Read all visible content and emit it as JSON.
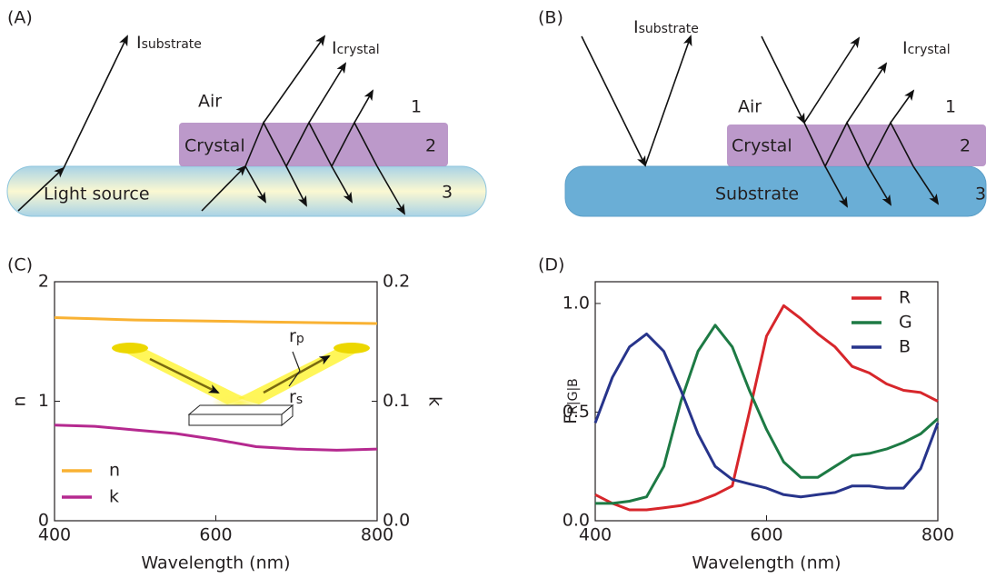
{
  "panel_a": {
    "label": "(A)",
    "i_substrate": {
      "main": "I",
      "sub": "substrate"
    },
    "i_crystal": {
      "main": "I",
      "sub": "crystal"
    },
    "air": "Air",
    "layer_1": "1",
    "crystal": "Crystal",
    "layer_2": "2",
    "base": "Light source",
    "layer_3": "3"
  },
  "panel_b": {
    "label": "(B)",
    "i_substrate": {
      "main": "I",
      "sub": "substrate"
    },
    "i_crystal": {
      "main": "I",
      "sub": "crystal"
    },
    "air": "Air",
    "layer_1": "1",
    "crystal": "Crystal",
    "layer_2": "2",
    "base": "Substrate",
    "layer_3": "3"
  },
  "chart_data": [
    {
      "type": "line",
      "title": "(C)",
      "x_label": "Wavelength (nm)",
      "y_label": "n",
      "y2_label": "k",
      "x": [
        400,
        450,
        500,
        550,
        600,
        650,
        700,
        750,
        800
      ],
      "series": [
        {
          "name": "n",
          "color": "#f9b233",
          "values": [
            1.7,
            1.69,
            1.68,
            1.675,
            1.67,
            1.665,
            1.66,
            1.655,
            1.65
          ]
        },
        {
          "name": "k",
          "color": "#b5298f",
          "axis": "y2",
          "values": [
            0.08,
            0.079,
            0.076,
            0.073,
            0.068,
            0.062,
            0.06,
            0.059,
            0.06
          ]
        }
      ],
      "xlim": [
        400,
        800
      ],
      "xticks": [
        400,
        600,
        800
      ],
      "ylim": [
        0,
        2
      ],
      "yticks": [
        0,
        1,
        2
      ],
      "y2lim": [
        0,
        0.2
      ],
      "y2ticks": [
        {
          "value": 0,
          "label": "0.0"
        },
        {
          "value": 0.1,
          "label": "0.1"
        },
        {
          "value": 0.2,
          "label": "0.2"
        }
      ],
      "legend": "lower left",
      "inset_labels": [
        {
          "main": "r",
          "sub": "p"
        },
        {
          "main": "r",
          "sub": "s"
        }
      ]
    },
    {
      "type": "line",
      "title": "(D)",
      "x_label": "Wavelength (nm)",
      "y_label": {
        "main": "F",
        "sub": "R|G|B"
      },
      "x": [
        400,
        420,
        440,
        460,
        480,
        500,
        520,
        540,
        560,
        580,
        600,
        620,
        640,
        660,
        680,
        700,
        720,
        740,
        760,
        780,
        800
      ],
      "series": [
        {
          "name": "R",
          "color": "#d7262b",
          "values": [
            0.12,
            0.08,
            0.05,
            0.05,
            0.06,
            0.07,
            0.09,
            0.12,
            0.16,
            0.5,
            0.85,
            0.99,
            0.93,
            0.86,
            0.8,
            0.71,
            0.68,
            0.63,
            0.6,
            0.59,
            0.55
          ]
        },
        {
          "name": "G",
          "color": "#1d7a44",
          "values": [
            0.08,
            0.08,
            0.09,
            0.11,
            0.25,
            0.55,
            0.78,
            0.9,
            0.8,
            0.6,
            0.42,
            0.27,
            0.2,
            0.2,
            0.25,
            0.3,
            0.31,
            0.33,
            0.36,
            0.4,
            0.47
          ]
        },
        {
          "name": "B",
          "color": "#27348b",
          "values": [
            0.45,
            0.66,
            0.8,
            0.86,
            0.78,
            0.6,
            0.4,
            0.25,
            0.19,
            0.17,
            0.15,
            0.12,
            0.11,
            0.12,
            0.13,
            0.16,
            0.16,
            0.15,
            0.15,
            0.24,
            0.45
          ]
        }
      ],
      "xlim": [
        400,
        800
      ],
      "xticks": [
        400,
        600,
        800
      ],
      "ylim": [
        0,
        1.1
      ],
      "yticks": [
        {
          "value": 0,
          "label": "0.0"
        },
        {
          "value": 0.5,
          "label": "0.5"
        },
        {
          "value": 1,
          "label": "1.0"
        }
      ],
      "legend": "upper right"
    }
  ]
}
